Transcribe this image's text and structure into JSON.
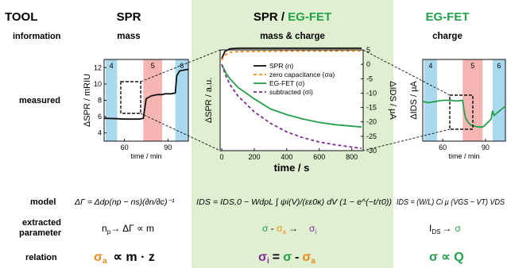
{
  "colors": {
    "green": "#22a04a",
    "orange": "#f08a1c",
    "purple": "#7e2d93",
    "panel_bg": "#e0efcf",
    "blue_band": "#a9d8ef",
    "red_band": "#f5b5b3",
    "gray_panel": "#e4e4e4"
  },
  "header": {
    "tool": "TOOL",
    "spr": "SPR",
    "combo_spr": "SPR",
    "combo_sep": " / ",
    "combo_eg": "EG-FET",
    "egfet": "EG-FET"
  },
  "information": {
    "label": "information",
    "spr": "mass",
    "combo": "mass & charge",
    "egfet": "charge"
  },
  "measured": {
    "label": "measured"
  },
  "model": {
    "label": "model",
    "spr_eq": "ΔΓ = Δdp(np − ns)(∂n/∂c)⁻¹",
    "combo_eq": "IDS = IDS,0 − WdpL ∫ ψi(V)/(εε0κ) dV (1 − e^(−t/τ0))",
    "egfet_eq": "IDS = (W/L) Ci μ (VGS − VT) VDS"
  },
  "extracted": {
    "label1": "extracted",
    "label2": "parameter",
    "spr_n": "n",
    "spr_sub": "p",
    "spr_arrow": "→",
    "spr_rest": "ΔΓ ∝ m",
    "combo_sigma": "σ",
    "combo_minus": " - ",
    "combo_sigma2": "σ",
    "combo_sub2": "a",
    "combo_arrow": "→",
    "combo_sigma3": "σ",
    "combo_sub3": "i",
    "eg_i": "I",
    "eg_sub": "DS",
    "eg_arrow": "→",
    "eg_sigma": "σ"
  },
  "relation": {
    "label": "relation",
    "spr_sigma": "σ",
    "spr_sub": "a",
    "spr_rest": "∝  m · z",
    "combo_sigma": "σ",
    "combo_sub": "i",
    "combo_eq": "=",
    "combo_s2": "σ",
    "combo_minus": "-",
    "combo_s3": "σ",
    "combo_sub3": "a",
    "eg_rest": "σ ∝ Q"
  },
  "chart_data": [
    {
      "type": "line",
      "name_panel": "spr",
      "xlabel": "time / min",
      "ylabel": "ΔSPR / mRIU",
      "xlim": [
        46,
        104
      ],
      "ylim": [
        3,
        13
      ],
      "xticks": [
        60,
        90
      ],
      "yticks": [
        4,
        6,
        8,
        10,
        12
      ],
      "bands": [
        {
          "label": "4",
          "x0": 47,
          "x1": 55,
          "color": "blue"
        },
        {
          "label": "5",
          "x0": 73,
          "x1": 86,
          "color": "red"
        },
        {
          "label": "6",
          "x0": 95,
          "x1": 104,
          "color": "blue"
        }
      ],
      "series": [
        {
          "color": "black",
          "x": [
            46,
            55,
            60,
            65,
            70,
            73,
            75,
            78,
            80,
            83,
            86,
            88,
            92,
            95,
            96,
            98,
            104
          ],
          "y": [
            5.8,
            5.75,
            5.7,
            5.7,
            5.7,
            5.8,
            8.2,
            8.5,
            8.6,
            8.7,
            8.7,
            8.8,
            8.8,
            8.9,
            11.0,
            11.6,
            11.8
          ]
        }
      ]
    },
    {
      "type": "line",
      "name_panel": "combo",
      "xlabel": "time / s",
      "ylabel": "ΔSPR / a.u.",
      "ylabel2": "ΔIDS / μA",
      "xlim": [
        -10,
        870
      ],
      "xticks": [
        0,
        200,
        400,
        600,
        800
      ],
      "ylim_right": [
        -30,
        5
      ],
      "yticks_right": [
        5,
        0,
        -5,
        -10,
        -15,
        -20,
        -25,
        -30
      ],
      "series": [
        {
          "name": "SPR (n)",
          "color": "black",
          "dash": "",
          "x": [
            0,
            20,
            50,
            100,
            200,
            400,
            600,
            860
          ],
          "y": [
            2.0,
            4.5,
            5.4,
            5.6,
            5.6,
            5.6,
            5.6,
            5.6
          ]
        },
        {
          "name": "zero capacitance (σa)",
          "color": "orange",
          "dash": "4,3",
          "x": [
            0,
            20,
            50,
            100,
            200,
            400,
            600,
            860
          ],
          "y": [
            1.5,
            3.2,
            4.2,
            4.4,
            4.5,
            4.6,
            4.6,
            4.7
          ]
        },
        {
          "name": "EG-FET (σ)",
          "color": "green",
          "dash": "",
          "x": [
            0,
            25,
            50,
            100,
            200,
            300,
            400,
            500,
            600,
            700,
            860
          ],
          "y": [
            0,
            -3,
            -5,
            -8,
            -12,
            -15.5,
            -17.5,
            -19,
            -20.2,
            -21,
            -21.8
          ]
        },
        {
          "name": "subtracted (σi)",
          "color": "purple",
          "dash": "4,3",
          "x": [
            0,
            25,
            50,
            100,
            200,
            300,
            400,
            500,
            600,
            700,
            860
          ],
          "y": [
            0,
            -4,
            -7,
            -11,
            -16.5,
            -20.5,
            -23.5,
            -25.5,
            -27,
            -28,
            -29.2
          ]
        }
      ]
    },
    {
      "type": "line",
      "name_panel": "egfet",
      "xlabel": "time / min",
      "ylabel": "ΔIDS / μA",
      "xlim": [
        46,
        104
      ],
      "ylim": [
        -25,
        10
      ],
      "xticks": [
        60,
        90
      ],
      "bands": [
        {
          "label": "4",
          "x0": 47,
          "x1": 56,
          "color": "blue"
        },
        {
          "label": "5",
          "x0": 74,
          "x1": 88,
          "color": "red"
        },
        {
          "label": "6",
          "x0": 95,
          "x1": 104,
          "color": "blue"
        }
      ],
      "series": [
        {
          "color": "green",
          "x": [
            46,
            50,
            55,
            60,
            65,
            70,
            74,
            75,
            76,
            78,
            80,
            84,
            88,
            90,
            94,
            95,
            96,
            98,
            100,
            104
          ],
          "y": [
            -8,
            -8.5,
            -8,
            -7.5,
            -7.5,
            -7.8,
            -7.5,
            -12,
            -15,
            -17,
            -18.2,
            -18.8,
            -19,
            -18,
            -15.5,
            -12,
            -14,
            -13,
            -12,
            -10
          ]
        }
      ]
    }
  ]
}
